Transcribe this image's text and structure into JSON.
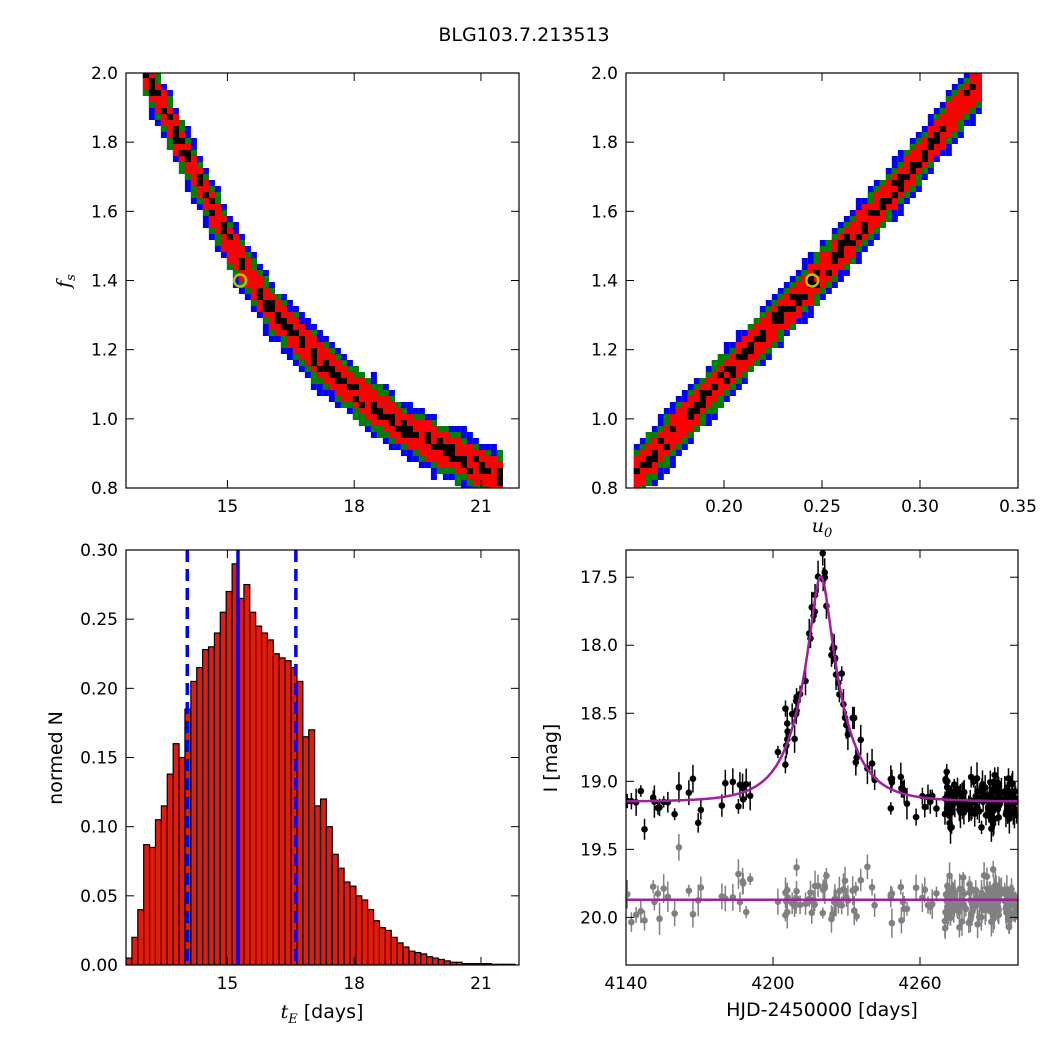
{
  "suptitle": "BLG103.7.213513",
  "colors": {
    "sigma1": "#000000",
    "sigma2": "#ff0000",
    "sigma3": "#008000",
    "sigma4": "#0000ff",
    "best_fit_marker": "#bfbf00",
    "histogram_bar": "#e31a0e",
    "model": "#a020a0",
    "residuals": "#808080"
  },
  "chart_data": [
    {
      "id": "fs_vs_tE",
      "type": "heatmap",
      "ylabel_math": {
        "base": "f",
        "sub": "s"
      },
      "xlabel": "",
      "xlim": [
        12.6,
        21.9
      ],
      "ylim": [
        0.8,
        2.0
      ],
      "xticks": [
        15,
        18,
        21
      ],
      "yticks": [
        0.8,
        1.0,
        1.2,
        1.4,
        1.6,
        1.8,
        2.0
      ],
      "ytick_labels": [
        "0.8",
        "1.0",
        "1.2",
        "1.4",
        "1.6",
        "1.8",
        "2.0"
      ],
      "levels": [
        "1-sigma (black)",
        "2-sigma (red)",
        "3-sigma (green)",
        "4-sigma (blue)"
      ],
      "ridge": [
        [
          13.0,
          2.0
        ],
        [
          14.0,
          1.75
        ],
        [
          15.0,
          1.5
        ],
        [
          16.0,
          1.31
        ],
        [
          17.0,
          1.18
        ],
        [
          18.0,
          1.07
        ],
        [
          19.0,
          0.98
        ],
        [
          20.0,
          0.91
        ],
        [
          21.0,
          0.85
        ],
        [
          21.4,
          0.83
        ]
      ],
      "best_fit": [
        15.3,
        1.4
      ]
    },
    {
      "id": "fs_vs_u0",
      "type": "heatmap",
      "xlabel_math": {
        "base": "u",
        "sub": "0"
      },
      "xlim": [
        0.15,
        0.35
      ],
      "ylim": [
        0.8,
        2.0
      ],
      "xticks": [
        0.2,
        0.25,
        0.3,
        0.35
      ],
      "xtick_labels": [
        "0.20",
        "0.25",
        "0.30",
        "0.35"
      ],
      "yticks": [
        0.8,
        1.0,
        1.2,
        1.4,
        1.6,
        1.8,
        2.0
      ],
      "ytick_labels": [
        "0.8",
        "1.0",
        "1.2",
        "1.4",
        "1.6",
        "1.8",
        "2.0"
      ],
      "ridge": [
        [
          0.154,
          0.84
        ],
        [
          0.2,
          1.13
        ],
        [
          0.245,
          1.4
        ],
        [
          0.29,
          1.69
        ],
        [
          0.33,
          1.98
        ]
      ],
      "best_fit": [
        0.245,
        1.4
      ]
    },
    {
      "id": "tE_histogram",
      "type": "bar",
      "ylabel": "normed N",
      "xlabel_math": {
        "base": "t",
        "sub": "E",
        "suffix": " [days]"
      },
      "xlim": [
        12.6,
        21.9
      ],
      "ylim": [
        0.0,
        0.3
      ],
      "xticks": [
        15,
        18,
        21
      ],
      "yticks": [
        0.0,
        0.05,
        0.1,
        0.15,
        0.2,
        0.25,
        0.3
      ],
      "ytick_labels": [
        "0.00",
        "0.05",
        "0.10",
        "0.15",
        "0.20",
        "0.25",
        "0.30"
      ],
      "bin_start": 12.6,
      "bin_width": 0.1395,
      "values": [
        0.005,
        0.02,
        0.04,
        0.087,
        0.085,
        0.105,
        0.115,
        0.138,
        0.16,
        0.15,
        0.185,
        0.205,
        0.215,
        0.228,
        0.23,
        0.24,
        0.255,
        0.27,
        0.29,
        0.265,
        0.275,
        0.255,
        0.245,
        0.24,
        0.235,
        0.225,
        0.222,
        0.22,
        0.215,
        0.205,
        0.165,
        0.17,
        0.115,
        0.12,
        0.1,
        0.08,
        0.07,
        0.06,
        0.057,
        0.05,
        0.047,
        0.04,
        0.032,
        0.027,
        0.025,
        0.02,
        0.016,
        0.013,
        0.01,
        0.009,
        0.008,
        0.006,
        0.005,
        0.004,
        0.003,
        0.002,
        0.002,
        0.001,
        0.001,
        0.001,
        0.001,
        0.001,
        0.0005,
        0.0005,
        0.0005,
        0.0005
      ],
      "median": 15.25,
      "bounds": [
        14.05,
        16.62
      ]
    },
    {
      "id": "light_curve",
      "type": "scatter",
      "ylabel": "I [mag]",
      "xlabel": "HJD-2450000 [days]",
      "xlim": [
        4140,
        4300
      ],
      "ylim": [
        20.35,
        17.3
      ],
      "xticks": [
        4140,
        4200,
        4260
      ],
      "yticks": [
        17.5,
        18.0,
        18.5,
        19.0,
        19.5,
        20.0
      ],
      "ytick_labels": [
        "17.5",
        "18.0",
        "18.5",
        "19.0",
        "19.5",
        "20.0"
      ],
      "model": {
        "t0": 4219.5,
        "u0": 0.245,
        "tE": 15.25,
        "baseline": 19.15
      },
      "residual_baseline": 19.87,
      "n_points": 230
    }
  ]
}
